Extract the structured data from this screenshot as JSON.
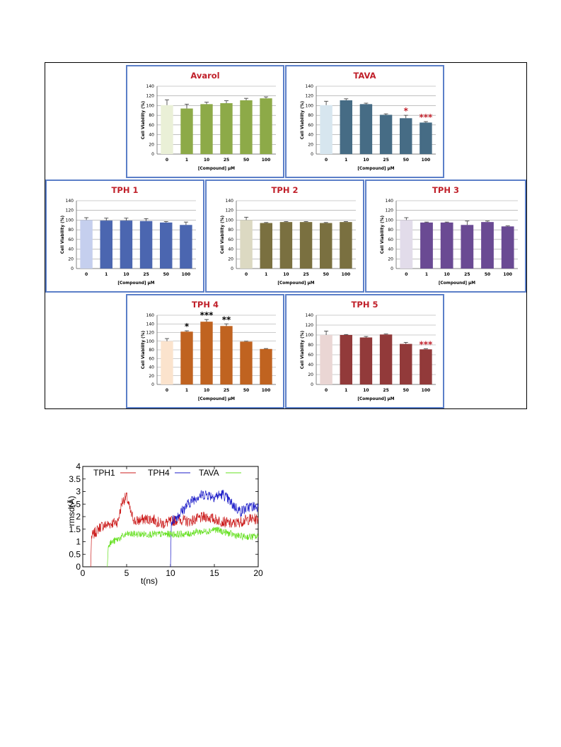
{
  "chart_data": [
    {
      "type": "bar",
      "title": "Avarol",
      "categories": [
        "0",
        "1",
        "10",
        "25",
        "50",
        "100"
      ],
      "values": [
        101,
        94,
        103,
        105,
        111,
        115
      ],
      "errors": [
        11,
        9,
        4,
        5,
        4,
        3
      ],
      "bar_color": "#8daa48",
      "first_bar_color": "#eaf0d7",
      "ylabel": "Cell Viability (%)",
      "xlabel": "[Compound] µM",
      "yticks": [
        "0",
        "20",
        "40",
        "60",
        "80",
        "100",
        "120",
        "140"
      ],
      "ylim": [
        0,
        140
      ],
      "annotations": [],
      "annotation_color": "#c0202a",
      "grid": true
    },
    {
      "type": "bar",
      "title": "TAVA",
      "categories": [
        "0",
        "1",
        "10",
        "25",
        "50",
        "100"
      ],
      "values": [
        101,
        111,
        103,
        81,
        74,
        65
      ],
      "errors": [
        8,
        3,
        2,
        2,
        6,
        2
      ],
      "bar_color": "#466c85",
      "first_bar_color": "#d7e6ef",
      "ylabel": "Cell Viability (%)",
      "xlabel": "[Compound] µM",
      "yticks": [
        "0",
        "20",
        "40",
        "60",
        "80",
        "100",
        "120",
        "140"
      ],
      "ylim": [
        0,
        140
      ],
      "annotations": [
        "",
        "",
        "",
        "",
        "*",
        "***"
      ],
      "annotation_color": "#c0202a",
      "grid": true
    },
    {
      "type": "bar",
      "title": "TPH 1",
      "categories": [
        "0",
        "1",
        "10",
        "25",
        "50",
        "100"
      ],
      "values": [
        100,
        99,
        99,
        98,
        95,
        90
      ],
      "errors": [
        5,
        5,
        5,
        5,
        2,
        6
      ],
      "bar_color": "#4b66b0",
      "first_bar_color": "#c5cfee",
      "ylabel": "Cell Viability (%)",
      "xlabel": "[Compound] µM",
      "yticks": [
        "0",
        "20",
        "40",
        "60",
        "80",
        "100",
        "120",
        "140"
      ],
      "ylim": [
        0,
        140
      ],
      "annotations": [],
      "annotation_color": "#c0202a",
      "grid": true
    },
    {
      "type": "bar",
      "title": "TPH 2",
      "categories": [
        "0",
        "1",
        "10",
        "25",
        "50",
        "100"
      ],
      "values": [
        100,
        94,
        96,
        96,
        94,
        96
      ],
      "errors": [
        6,
        1,
        1,
        1,
        1,
        1
      ],
      "bar_color": "#7a7040",
      "first_bar_color": "#dcd9c2",
      "ylabel": "Cell Viability (%)",
      "xlabel": "[Compound] µM",
      "yticks": [
        "0",
        "20",
        "40",
        "60",
        "80",
        "100",
        "120",
        "140"
      ],
      "ylim": [
        0,
        140
      ],
      "annotations": [],
      "annotation_color": "#c0202a",
      "grid": true
    },
    {
      "type": "bar",
      "title": "TPH 3",
      "categories": [
        "0",
        "1",
        "10",
        "25",
        "50",
        "100"
      ],
      "values": [
        100,
        95,
        95,
        90,
        96,
        87
      ],
      "errors": [
        5,
        1,
        1,
        8,
        2,
        1
      ],
      "bar_color": "#6a4a93",
      "first_bar_color": "#e2dcea",
      "ylabel": "Cell Viability (%)",
      "xlabel": "[Compound] µM",
      "yticks": [
        "0",
        "20",
        "40",
        "60",
        "80",
        "100",
        "120",
        "140"
      ],
      "ylim": [
        0,
        140
      ],
      "annotations": [],
      "annotation_color": "#c0202a",
      "grid": true
    },
    {
      "type": "bar",
      "title": "TPH 4",
      "categories": [
        "0",
        "1",
        "10",
        "25",
        "50",
        "100"
      ],
      "values": [
        100,
        122,
        145,
        135,
        99,
        82
      ],
      "errors": [
        6,
        2,
        5,
        5,
        1,
        1
      ],
      "bar_color": "#c06320",
      "first_bar_color": "#fbe3cd",
      "ylabel": "Cell Viability (%)",
      "xlabel": "[Compound] µM",
      "yticks": [
        "0",
        "20",
        "40",
        "60",
        "80",
        "100",
        "120",
        "140",
        "160"
      ],
      "ylim": [
        0,
        160
      ],
      "annotations": [
        "",
        "*",
        "***",
        "**",
        "",
        ""
      ],
      "annotation_color": "#000000",
      "grid": true
    },
    {
      "type": "bar",
      "title": "TPH 5",
      "categories": [
        "0",
        "1",
        "10",
        "25",
        "50",
        "100"
      ],
      "values": [
        100,
        100,
        95,
        101,
        82,
        71
      ],
      "errors": [
        8,
        1,
        2,
        1,
        3,
        1
      ],
      "bar_color": "#923a3a",
      "first_bar_color": "#ead6d4",
      "ylabel": "Cell Viability (%)",
      "xlabel": "[Compound] µM",
      "yticks": [
        "0",
        "20",
        "40",
        "60",
        "80",
        "100",
        "120",
        "140"
      ],
      "ylim": [
        0,
        140
      ],
      "annotations": [
        "",
        "",
        "",
        "",
        "",
        "***"
      ],
      "annotation_color": "#c0202a",
      "grid": true
    },
    {
      "type": "line",
      "xlabel": "t(ns)",
      "ylabel": "rmsd(Å)",
      "xlim": [
        0,
        20
      ],
      "ylim": [
        0,
        4
      ],
      "xticks": [
        "0",
        "5",
        "10",
        "15",
        "20"
      ],
      "yticks": [
        "0",
        "0.5",
        "1",
        "1.5",
        "2",
        "2.5",
        "3",
        "3.5",
        "4"
      ],
      "legend_position": "top",
      "series": [
        {
          "name": "TPH1",
          "color": "#cc1f1f",
          "x": [
            0.9,
            1,
            2,
            3,
            4,
            4.5,
            5,
            5.5,
            6,
            7,
            8,
            9,
            10,
            11,
            12,
            13,
            14,
            15,
            16,
            17,
            18,
            19,
            20
          ],
          "y": [
            0,
            1.2,
            1.6,
            1.7,
            1.8,
            2.6,
            2.8,
            2.1,
            1.8,
            1.9,
            1.9,
            1.7,
            1.8,
            1.9,
            1.8,
            1.9,
            2.0,
            1.9,
            1.8,
            1.7,
            1.8,
            1.9,
            1.9
          ]
        },
        {
          "name": "TPH4",
          "color": "#1c1cc8",
          "x": [
            10,
            10.1,
            11,
            12,
            13,
            14,
            15,
            16,
            17,
            18,
            19,
            20
          ],
          "y": [
            0,
            1.8,
            2.1,
            2.5,
            2.8,
            2.9,
            2.8,
            2.9,
            2.5,
            2.2,
            2.4,
            2.4
          ]
        },
        {
          "name": "TAVA",
          "color": "#66e022",
          "x": [
            2.8,
            2.9,
            4,
            5,
            6,
            7,
            8,
            9,
            10,
            11,
            12,
            13,
            14,
            15,
            16,
            17,
            18,
            19,
            20
          ],
          "y": [
            0,
            0.9,
            1.1,
            1.3,
            1.3,
            1.3,
            1.3,
            1.3,
            1.3,
            1.3,
            1.3,
            1.4,
            1.4,
            1.5,
            1.4,
            1.3,
            1.2,
            1.2,
            1.2
          ]
        }
      ]
    }
  ]
}
